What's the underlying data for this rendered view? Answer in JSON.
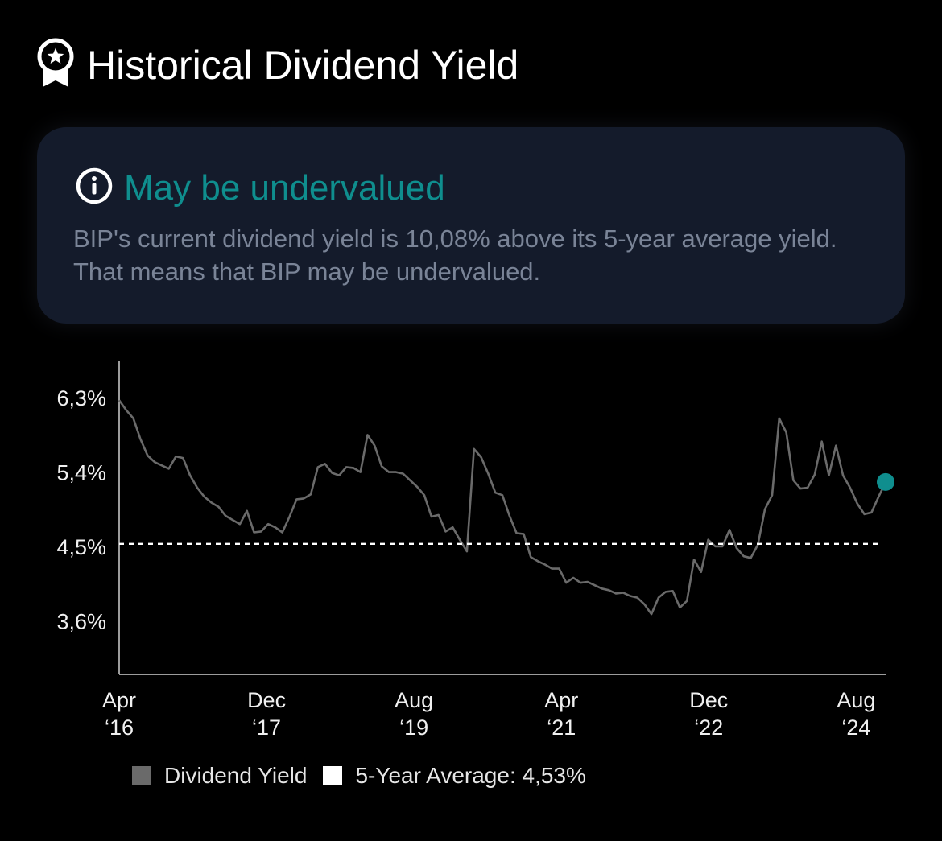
{
  "header": {
    "title": "Historical Dividend Yield",
    "icon": "award-ribbon-icon"
  },
  "card": {
    "icon": "info-icon",
    "verdict": "May be undervalued",
    "verdict_color": "#0f8e8e",
    "description": "BIP's current dividend yield is 10,08% above its 5-year average yield. That means that BIP may be undervalued."
  },
  "chart_data": {
    "type": "line",
    "title": "",
    "xlabel": "",
    "ylabel": "",
    "ylim": [
      2.95,
      6.75
    ],
    "xlim": [
      "2016-04",
      "2024-12"
    ],
    "grid": false,
    "y_ticks": [
      {
        "value": 6.3,
        "label": "6,3%"
      },
      {
        "value": 5.4,
        "label": "5,4%"
      },
      {
        "value": 4.5,
        "label": "4,5%"
      },
      {
        "value": 3.6,
        "label": "3,6%"
      }
    ],
    "x_ticks": [
      {
        "date": "2016-04",
        "line1": "Apr",
        "line2": "‘16"
      },
      {
        "date": "2017-12",
        "line1": "Dec",
        "line2": "‘17"
      },
      {
        "date": "2019-08",
        "line1": "Aug",
        "line2": "‘19"
      },
      {
        "date": "2021-04",
        "line1": "Apr",
        "line2": "‘21"
      },
      {
        "date": "2022-12",
        "line1": "Dec",
        "line2": "‘22"
      },
      {
        "date": "2024-08",
        "line1": "Aug",
        "line2": "‘24"
      }
    ],
    "average": 4.53,
    "series": [
      {
        "name": "Dividend Yield",
        "color": "#6a6a6a",
        "points": [
          [
            "2016-04",
            6.27
          ],
          [
            "2016-05",
            6.15
          ],
          [
            "2016-06",
            6.05
          ],
          [
            "2016-07",
            5.8
          ],
          [
            "2016-08",
            5.6
          ],
          [
            "2016-09",
            5.52
          ],
          [
            "2016-10",
            5.48
          ],
          [
            "2016-11",
            5.44
          ],
          [
            "2016-12",
            5.59
          ],
          [
            "2017-01",
            5.57
          ],
          [
            "2017-02",
            5.36
          ],
          [
            "2017-03",
            5.21
          ],
          [
            "2017-04",
            5.1
          ],
          [
            "2017-05",
            5.03
          ],
          [
            "2017-06",
            4.98
          ],
          [
            "2017-07",
            4.87
          ],
          [
            "2017-08",
            4.82
          ],
          [
            "2017-09",
            4.77
          ],
          [
            "2017-10",
            4.93
          ],
          [
            "2017-11",
            4.67
          ],
          [
            "2017-12",
            4.68
          ],
          [
            "2018-01",
            4.77
          ],
          [
            "2018-02",
            4.73
          ],
          [
            "2018-03",
            4.67
          ],
          [
            "2018-04",
            4.86
          ],
          [
            "2018-05",
            5.07
          ],
          [
            "2018-06",
            5.08
          ],
          [
            "2018-07",
            5.13
          ],
          [
            "2018-08",
            5.46
          ],
          [
            "2018-09",
            5.5
          ],
          [
            "2018-10",
            5.39
          ],
          [
            "2018-11",
            5.36
          ],
          [
            "2018-12",
            5.46
          ],
          [
            "2018-13",
            5.45
          ],
          [
            "2019-02",
            5.4
          ],
          [
            "2019-03",
            5.85
          ],
          [
            "2019-04",
            5.72
          ],
          [
            "2019-05",
            5.47
          ],
          [
            "2019-06",
            5.4
          ],
          [
            "2019-07",
            5.4
          ],
          [
            "2019-08",
            5.38
          ],
          [
            "2019-09",
            5.3
          ],
          [
            "2019-10",
            5.22
          ],
          [
            "2019-11",
            5.12
          ],
          [
            "2019-12",
            4.86
          ],
          [
            "2020-01",
            4.88
          ],
          [
            "2020-02",
            4.68
          ],
          [
            "2020-03",
            4.73
          ],
          [
            "2020-04",
            4.58
          ],
          [
            "2020-05",
            4.44
          ],
          [
            "2020-06",
            5.68
          ],
          [
            "2020-07",
            5.58
          ],
          [
            "2020-08",
            5.38
          ],
          [
            "2020-09",
            5.15
          ],
          [
            "2020-10",
            5.12
          ],
          [
            "2020-11",
            4.87
          ],
          [
            "2020-12",
            4.66
          ],
          [
            "2021-01",
            4.65
          ],
          [
            "2021-02",
            4.37
          ],
          [
            "2021-03",
            4.32
          ],
          [
            "2021-04",
            4.28
          ],
          [
            "2021-05",
            4.23
          ],
          [
            "2021-06",
            4.23
          ],
          [
            "2021-07",
            4.06
          ],
          [
            "2021-08",
            4.12
          ],
          [
            "2021-09",
            4.06
          ],
          [
            "2021-10",
            4.07
          ],
          [
            "2021-11",
            4.03
          ],
          [
            "2021-12",
            3.99
          ],
          [
            "2022-01",
            3.97
          ],
          [
            "2022-02",
            3.93
          ],
          [
            "2022-03",
            3.94
          ],
          [
            "2022-04",
            3.9
          ],
          [
            "2022-05",
            3.88
          ],
          [
            "2022-06",
            3.8
          ],
          [
            "2022-07",
            3.68
          ],
          [
            "2022-08",
            3.88
          ],
          [
            "2022-09",
            3.95
          ],
          [
            "2022-10",
            3.96
          ],
          [
            "2022-11",
            3.76
          ],
          [
            "2022-12",
            3.84
          ],
          [
            "2023-01",
            4.34
          ],
          [
            "2023-02",
            4.19
          ],
          [
            "2023-03",
            4.58
          ],
          [
            "2023-04",
            4.5
          ],
          [
            "2023-05",
            4.5
          ],
          [
            "2023-06",
            4.7
          ],
          [
            "2023-07",
            4.48
          ],
          [
            "2023-08",
            4.38
          ],
          [
            "2023-09",
            4.36
          ],
          [
            "2023-10",
            4.52
          ],
          [
            "2023-11",
            4.95
          ],
          [
            "2023-12",
            5.12
          ],
          [
            "2024-01",
            6.05
          ],
          [
            "2024-02",
            5.88
          ],
          [
            "2024-03",
            5.3
          ],
          [
            "2024-04",
            5.2
          ],
          [
            "2024-05",
            5.21
          ],
          [
            "2024-06",
            5.37
          ],
          [
            "2024-07",
            5.77
          ],
          [
            "2024-08",
            5.36
          ],
          [
            "2024-09",
            5.72
          ],
          [
            "2024-10",
            5.36
          ],
          [
            "2024-11",
            5.21
          ],
          [
            "2024-12",
            5.02
          ],
          [
            "2025-01",
            4.89
          ],
          [
            "2025-02",
            4.91
          ],
          [
            "2025-03",
            5.1
          ],
          [
            "2025-04",
            5.28
          ]
        ]
      },
      {
        "name": "5-Year Average: 4,53%",
        "color": "#ffffff",
        "style": "dashed"
      }
    ],
    "legend_placement": "bottom",
    "current_marker_color": "#0f8e8e"
  },
  "legend": {
    "items": [
      {
        "label": "Dividend Yield",
        "color": "#6a6a6a"
      },
      {
        "label": "5-Year Average: 4,53%",
        "color": "#ffffff"
      }
    ]
  }
}
